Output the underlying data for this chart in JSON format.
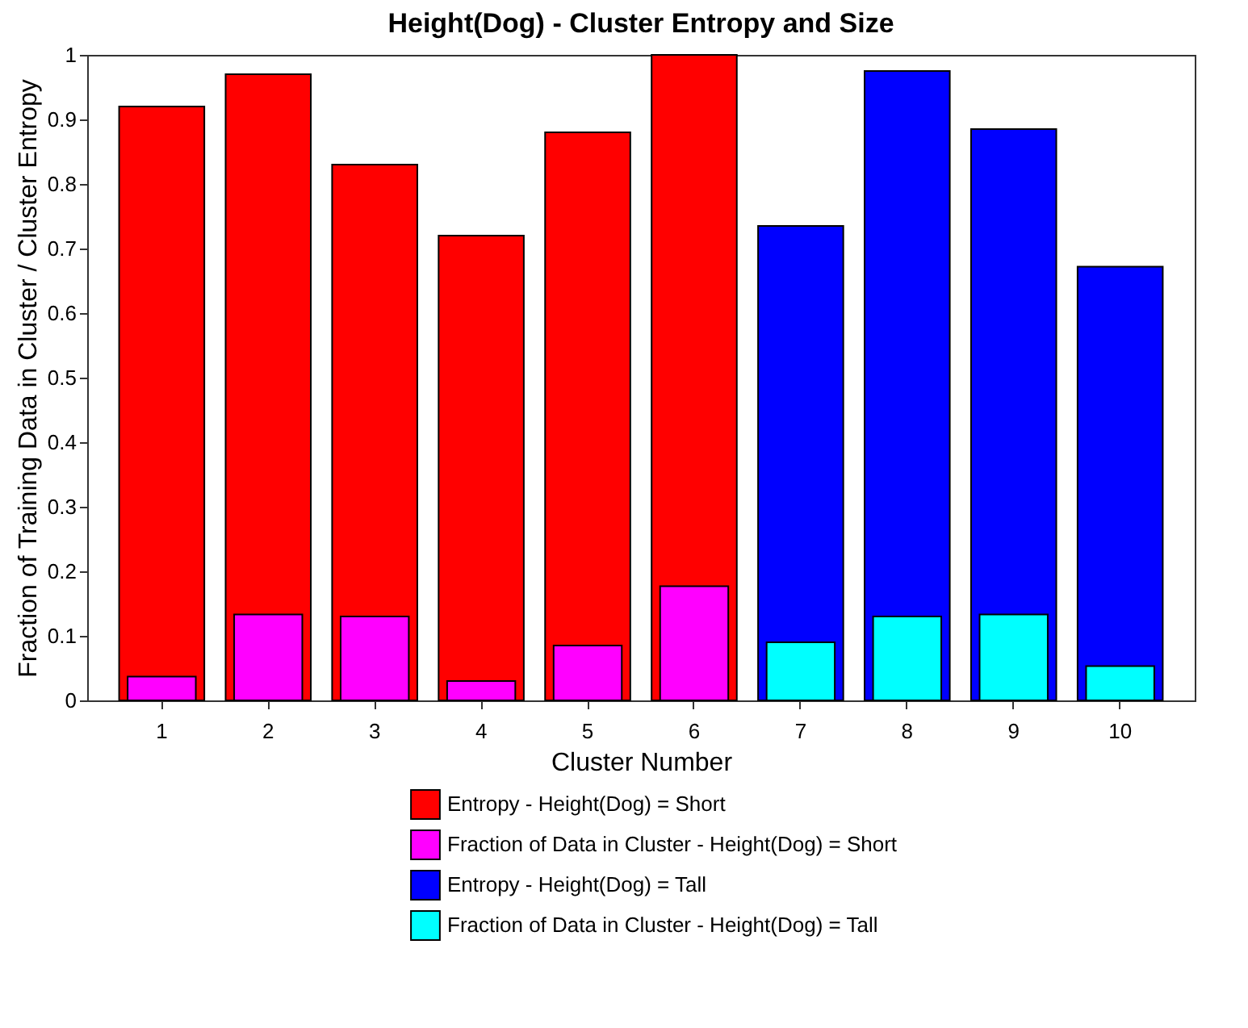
{
  "chart_data": {
    "type": "bar",
    "title": "Height(Dog) - Cluster Entropy and Size",
    "xlabel": "Cluster Number",
    "ylabel": "Fraction of Training Data in Cluster / Cluster Entropy",
    "categories": [
      "1",
      "2",
      "3",
      "4",
      "5",
      "6",
      "7",
      "8",
      "9",
      "10"
    ],
    "series": [
      {
        "name": "Entropy - Height(Dog) = Short",
        "color": "#ff0000",
        "values": [
          0.92,
          0.97,
          0.83,
          0.72,
          0.88,
          1.0,
          null,
          null,
          null,
          null
        ]
      },
      {
        "name": "Fraction of Data in Cluster - Height(Dog) = Short",
        "color": "#ff00ff",
        "values": [
          0.037,
          0.133,
          0.13,
          0.03,
          0.085,
          0.177,
          null,
          null,
          null,
          null
        ]
      },
      {
        "name": "Entropy - Height(Dog) = Tall",
        "color": "#0000ff",
        "values": [
          null,
          null,
          null,
          null,
          null,
          null,
          0.735,
          0.975,
          0.885,
          0.672
        ]
      },
      {
        "name": "Fraction of Data in Cluster - Height(Dog) = Tall",
        "color": "#00ffff",
        "values": [
          null,
          null,
          null,
          null,
          null,
          null,
          0.09,
          0.13,
          0.133,
          0.053
        ]
      }
    ],
    "ylim": [
      0,
      1
    ],
    "yticks": [
      0,
      0.1,
      0.2,
      0.3,
      0.4,
      0.5,
      0.6,
      0.7,
      0.8,
      0.9,
      1
    ],
    "grid": false,
    "legend": "bottom"
  }
}
